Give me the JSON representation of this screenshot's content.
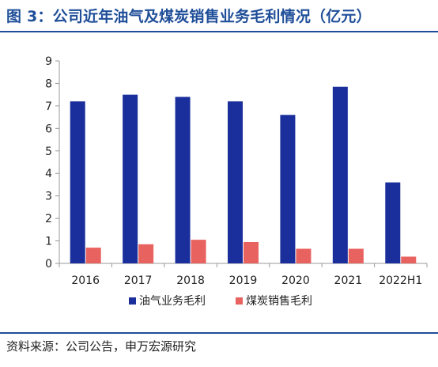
{
  "figure_title": "图 3：公司近年油气及煤炭销售业务毛利情况（亿元）",
  "source": "资料来源：公司公告，申万宏源研究",
  "colors": {
    "series_oil_gas": "#1a2f9c",
    "series_coal": "#e8625f",
    "title": "#1f4e99",
    "axis": "#999999"
  },
  "chart_data": {
    "type": "bar",
    "categories": [
      "2016",
      "2017",
      "2018",
      "2019",
      "2020",
      "2021",
      "2022H1"
    ],
    "series": [
      {
        "name": "油气业务毛利",
        "values": [
          7.2,
          7.5,
          7.4,
          7.2,
          6.6,
          7.85,
          3.6
        ]
      },
      {
        "name": "煤炭销售毛利",
        "values": [
          0.7,
          0.85,
          1.05,
          0.95,
          0.65,
          0.65,
          0.3
        ]
      }
    ],
    "ylim": [
      0,
      9
    ],
    "yticks": [
      "0",
      "1",
      "2",
      "3",
      "4",
      "5",
      "6",
      "7",
      "8",
      "9"
    ],
    "grid": false,
    "legend_position": "bottom"
  }
}
